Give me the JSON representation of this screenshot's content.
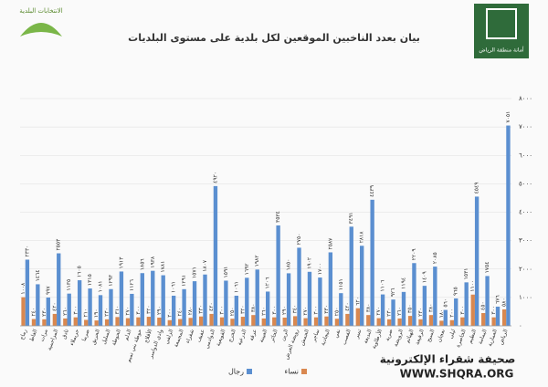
{
  "header": {
    "left_logo_text": "الانتخابات البلدية",
    "right_logo_text": "أمانة منطقة الرياض"
  },
  "watermark": {
    "site_name": "صحيفة شقراء الإلكترونية",
    "url": "WWW.SHQRA.ORG"
  },
  "chart_data": {
    "type": "bar",
    "title": "بيان بعدد الناخبين الموقعين لكل بلدية على مستوى البلديات",
    "categories": [
      "رماح",
      "الغاط",
      "مرات",
      "المزاحمية",
      "ثادق",
      "حريملاء",
      "ضرما",
      "الحريق",
      "السليل",
      "الحوطة",
      "الدلم",
      "حوطة بني تميم",
      "الأفلاج",
      "وادي الدواسر",
      "الزلفي",
      "المجمعة",
      "شقراء",
      "عفيف",
      "الدوادمي",
      "القويعية",
      "الخرج",
      "الدرعية",
      "عرقة",
      "العيينة",
      "الحائر",
      "الرين",
      "رويضة العرض",
      "الجمش",
      "ساجر",
      "البجادية",
      "نفي",
      "القصب",
      "تمير",
      "البديعة",
      "الأرطاوية",
      "ضرية",
      "الرويضة",
      "الهياثم",
      "الرفيعة",
      "السيح",
      "نعجان",
      "ليلى",
      "الخاصرة",
      "النظيم",
      "اليمامة",
      "العمارية",
      "الرياض"
    ],
    "series": [
      {
        "name": "نساء",
        "color": "#d98850",
        "values": [
          1008,
          240,
          230,
          420,
          260,
          300,
          210,
          190,
          230,
          310,
          270,
          300,
          320,
          290,
          200,
          240,
          280,
          330,
          420,
          300,
          250,
          320,
          380,
          260,
          300,
          290,
          340,
          270,
          300,
          330,
          250,
          420,
          620,
          380,
          270,
          230,
          260,
          350,
          230,
          380,
          180,
          200,
          300,
          1100,
          450,
          300,
          580
        ],
        "value_labels": [
          "١٠٠٨",
          "٢٤٠",
          "٢٣٠",
          "٤٢٠",
          "٢٦٠",
          "٣٠٠",
          "٢١٠",
          "١٩٠",
          "٢٣٠",
          "٣١٠",
          "٢٧٠",
          "٣٠٠",
          "٣٢٠",
          "٢٩٠",
          "٢٠٠",
          "٢٤٠",
          "٢٨٠",
          "٣٣٠",
          "٤٢٠",
          "٣٠٠",
          "٢٥٠",
          "٣٢٠",
          "٣٨٠",
          "٢٦٠",
          "٣٠٠",
          "٢٩٠",
          "٣٤٠",
          "٢٧٠",
          "٣٠٠",
          "٣٣٠",
          "٢٥٠",
          "٤٢٠",
          "٦٢٠",
          "٣٨٠",
          "٢٧٠",
          "٢٣٠",
          "٢٦٠",
          "٣٥٠",
          "٢٣٠",
          "٣٨٠",
          "١٨٠",
          "٢٠٠",
          "٣٠٠",
          "١١٠٠",
          "٤٥٠",
          "٣٠٠",
          "٥٨٠"
        ]
      },
      {
        "name": "رجال",
        "color": "#5b8fd0",
        "values": [
          2330,
          1464,
          997,
          2553,
          1135,
          1605,
          1315,
          1081,
          1293,
          1913,
          1126,
          1856,
          1938,
          1781,
          1061,
          1291,
          1571,
          1807,
          4920,
          1591,
          1061,
          1692,
          1982,
          1206,
          3534,
          1850,
          2750,
          1902,
          1700,
          2587,
          1151,
          3491,
          2818,
          4439,
          1106,
          926,
          1194,
          2209,
          1409,
          2085,
          560,
          965,
          1531,
          4549,
          1754,
          676,
          7051
        ],
        "value_labels": [
          "٢٣٣٠",
          "١٤٦٤",
          "٩٩٧",
          "٢٥٥٣",
          "١١٣٥",
          "١٦٠٥",
          "١٣١٥",
          "١٠٨١",
          "١٢٩٣",
          "١٩١٣",
          "١١٢٦",
          "١٨٥٦",
          "١٩٣٨",
          "١٧٨١",
          "١٠٦١",
          "١٢٩١",
          "١٥٧١",
          "١٨٠٧",
          "٤٩٢٠",
          "١٥٩١",
          "١٠٦١",
          "١٦٩٢",
          "١٩٨٢",
          "١٢٠٦",
          "٣٥٣٤",
          "١٨٥٠",
          "٢٧٥٠",
          "١٩٠٢",
          "١٧٠٠",
          "٢٥٨٧",
          "١١٥١",
          "٣٤٩١",
          "٢٨١٨",
          "٤٤٣٩",
          "١١٠٦",
          "٩٢٦",
          "١١٩٤",
          "٢٢٠٩",
          "١٤٠٩",
          "٢٠٨٥",
          "٥٦٠",
          "٩٦٥",
          "١٥٣١",
          "٤٥٤٩",
          "١٧٥٤",
          "٦٧٦",
          "٧٠٥١"
        ]
      }
    ],
    "ylim": [
      0,
      8000
    ],
    "yticks": [
      {
        "value": 0,
        "label": "٠"
      },
      {
        "value": 1000,
        "label": "١٠٠٠"
      },
      {
        "value": 2000,
        "label": "٢٠٠٠"
      },
      {
        "value": 3000,
        "label": "٣٠٠٠"
      },
      {
        "value": 4000,
        "label": "٤٠٠٠"
      },
      {
        "value": 5000,
        "label": "٥٠٠٠"
      },
      {
        "value": 6000,
        "label": "٦٠٠٠"
      },
      {
        "value": 7000,
        "label": "٧٠٠٠"
      },
      {
        "value": 8000,
        "label": "٨٠٠٠"
      }
    ],
    "grid": true
  }
}
